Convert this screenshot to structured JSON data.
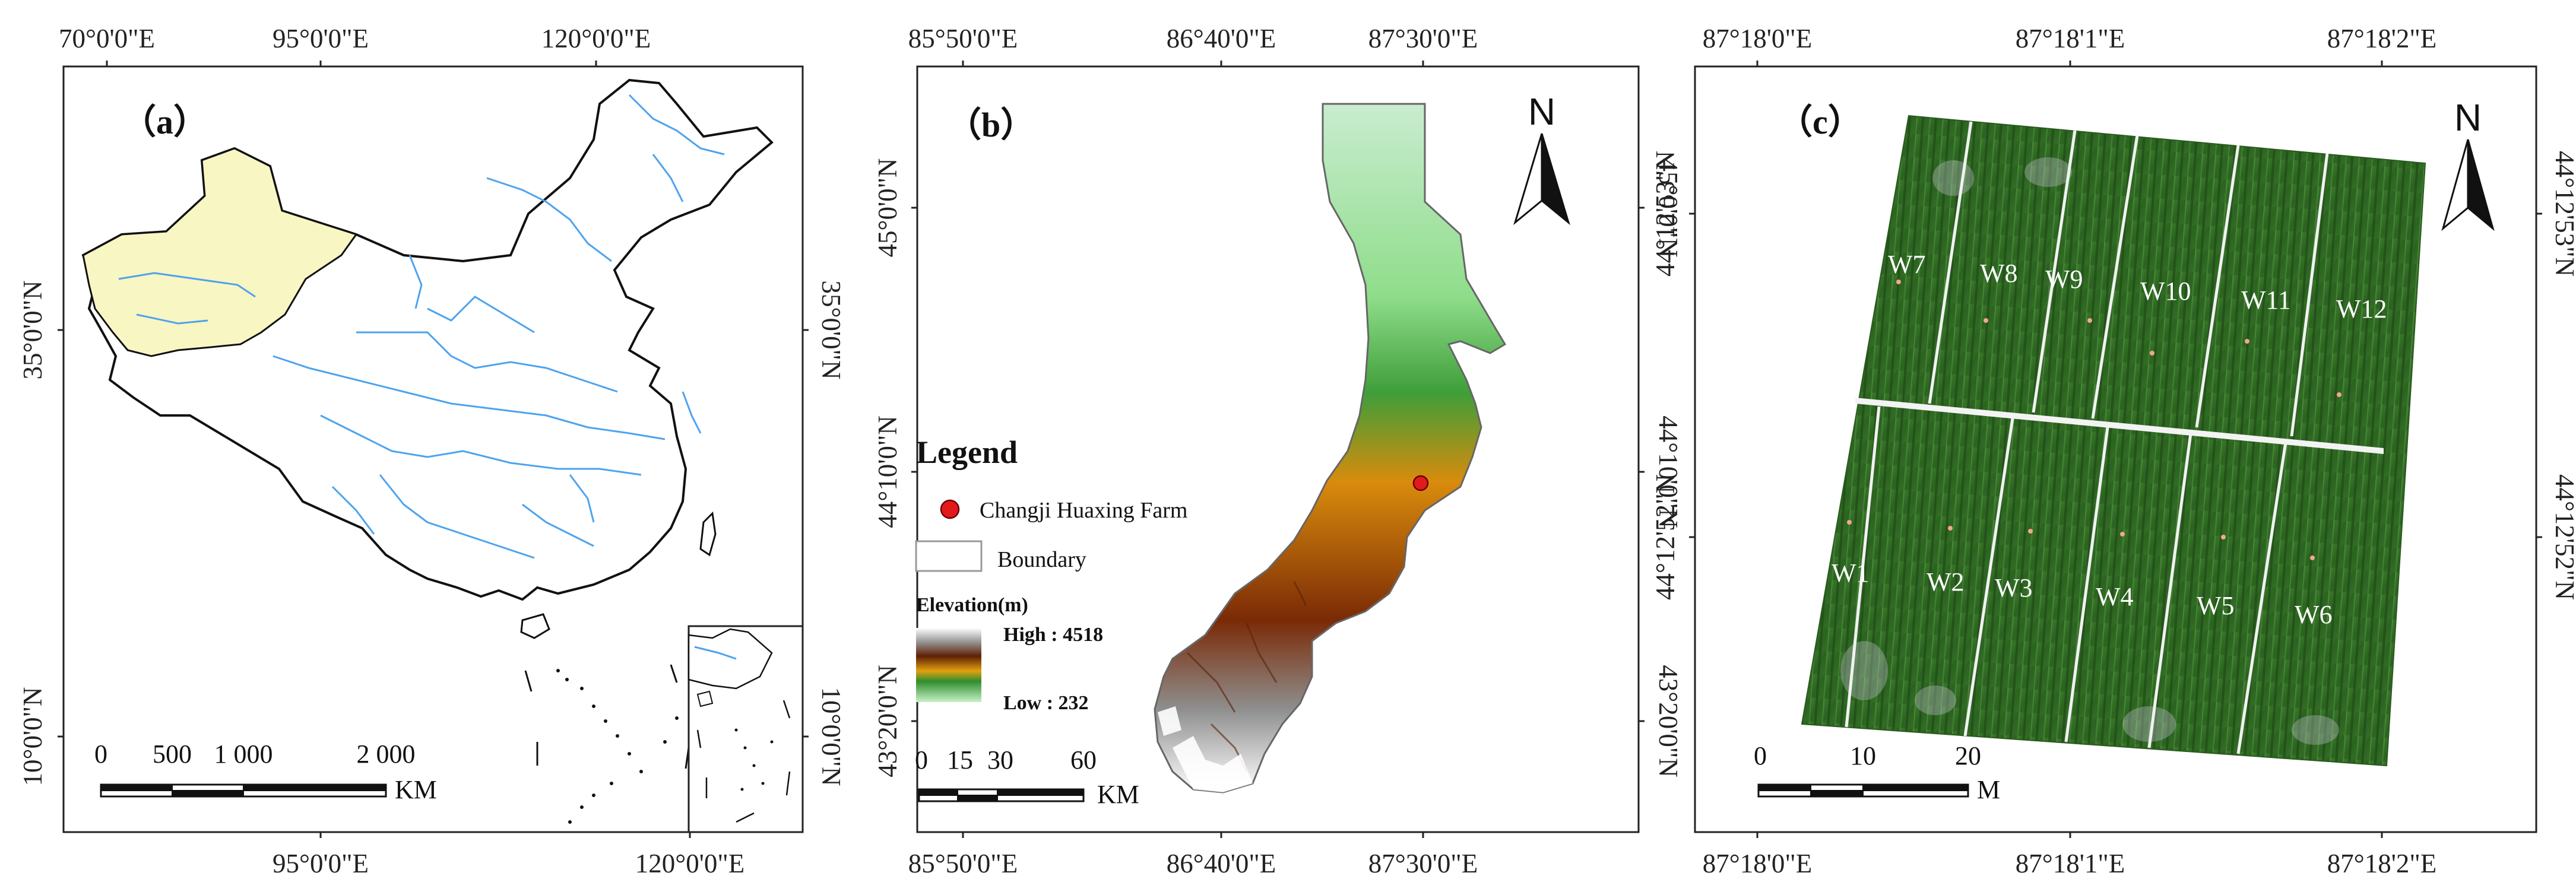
{
  "panel_a": {
    "label": "（a）",
    "top_ticks": [
      "70°0'0\"E",
      "95°0'0\"E",
      "120°0'0\"E"
    ],
    "bottom_ticks": [
      "95°0'0\"E",
      "120°0'0\"E"
    ],
    "left_ticks": [
      "35°0'0\"N",
      "10°0'0\"N"
    ],
    "right_ticks": [
      "35°0'0\"N",
      "10°0'0\"N"
    ],
    "scale": {
      "labels": [
        "0",
        "500",
        "1 000",
        "2 000"
      ],
      "unit": "KM"
    },
    "colors": {
      "xinjiang": "#f8f6c2",
      "river": "#4da3ee"
    }
  },
  "panel_b": {
    "label": "（b）",
    "top_ticks": [
      "85°50'0\"E",
      "86°40'0\"E",
      "87°30'0\"E"
    ],
    "bottom_ticks": [
      "85°50'0\"E",
      "86°40'0\"E",
      "87°30'0\"E"
    ],
    "left_ticks": [
      "45°0'0\"N",
      "44°10'0\"N",
      "43°20'0\"N"
    ],
    "right_ticks": [
      "45°0'0\"N",
      "44°10'0\"N",
      "43°20'0\"N"
    ],
    "north": "N",
    "legend": {
      "title": "Legend",
      "point": "Changji Huaxing Farm",
      "boundary": "Boundary",
      "elevation_title": "Elevation(m)",
      "high": "High : 4518",
      "low": "Low : 232"
    },
    "scale": {
      "labels": [
        "0",
        "15",
        "30",
        "60"
      ],
      "unit": "KM"
    },
    "colors": {
      "farm_marker": "#e31a1c"
    }
  },
  "panel_c": {
    "label": "（c）",
    "top_ticks": [
      "87°18'0\"E",
      "87°18'1\"E",
      "87°18'2\"E"
    ],
    "bottom_ticks": [
      "87°18'0\"E",
      "87°18'1\"E",
      "87°18'2\"E"
    ],
    "left_ticks": [
      "44°12'53\"N",
      "44°12'52\"N"
    ],
    "right_ticks": [
      "44°12'53\"N",
      "44°12'52\"N"
    ],
    "north": "N",
    "plots_top": [
      "W7",
      "W8",
      "W9",
      "W10",
      "W11",
      "W12"
    ],
    "plots_bottom": [
      "W1",
      "W2",
      "W3",
      "W4",
      "W5",
      "W6"
    ],
    "scale": {
      "labels": [
        "0",
        "10",
        "20"
      ],
      "unit": "M"
    },
    "colors": {
      "crop": "#2f6b22"
    }
  }
}
